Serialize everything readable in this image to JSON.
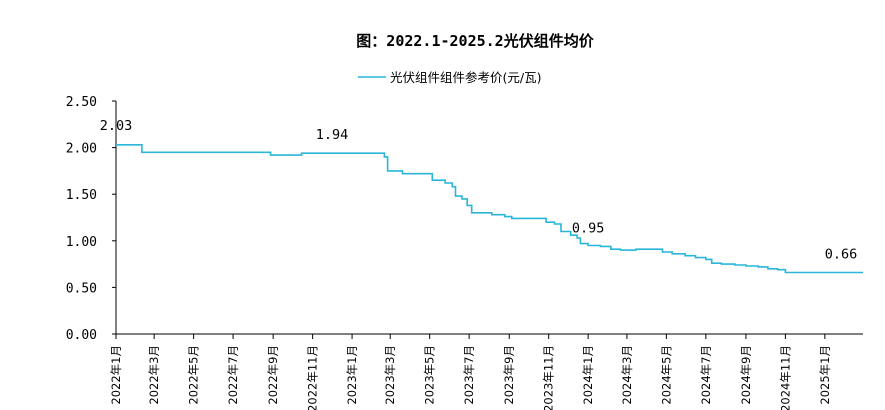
{
  "chart_data": {
    "type": "line",
    "title": "图：2022.1-2025.2光伏组件均价",
    "legend": "光伏组件组件参考价(元/瓦)",
    "legend_position": "top-center",
    "line_color": "#29b6d9",
    "grid": false,
    "ylim": [
      0,
      2.5
    ],
    "y_ticks": [
      "0.00",
      "0.50",
      "1.00",
      "1.50",
      "2.00",
      "2.50"
    ],
    "x_range_months": [
      "2022-01",
      "2025-03"
    ],
    "x_tick_labels": [
      "2022年1月",
      "2022年3月",
      "2022年5月",
      "2022年7月",
      "2022年9月",
      "2022年11月",
      "2023年1月",
      "2023年3月",
      "2023年5月",
      "2023年7月",
      "2023年9月",
      "2023年11月",
      "2024年1月",
      "2024年3月",
      "2024年5月",
      "2024年7月",
      "2024年9月",
      "2024年11月",
      "2025年1月"
    ],
    "series": [
      {
        "name": "光伏组件组件参考价(元/瓦)",
        "points": [
          [
            "2022-01-01",
            2.03
          ],
          [
            "2022-01-15",
            2.03
          ],
          [
            "2022-01-28",
            2.03
          ],
          [
            "2022-02-10",
            1.95
          ],
          [
            "2022-03-01",
            1.95
          ],
          [
            "2022-04-01",
            1.95
          ],
          [
            "2022-05-01",
            1.95
          ],
          [
            "2022-06-01",
            1.95
          ],
          [
            "2022-07-01",
            1.95
          ],
          [
            "2022-08-01",
            1.95
          ],
          [
            "2022-08-20",
            1.95
          ],
          [
            "2022-08-28",
            1.92
          ],
          [
            "2022-09-20",
            1.92
          ],
          [
            "2022-10-05",
            1.92
          ],
          [
            "2022-10-15",
            1.94
          ],
          [
            "2022-11-01",
            1.94
          ],
          [
            "2022-12-01",
            1.94
          ],
          [
            "2023-01-01",
            1.94
          ],
          [
            "2023-02-01",
            1.94
          ],
          [
            "2023-02-15",
            1.94
          ],
          [
            "2023-02-20",
            1.9
          ],
          [
            "2023-02-25",
            1.75
          ],
          [
            "2023-03-10",
            1.75
          ],
          [
            "2023-03-20",
            1.72
          ],
          [
            "2023-04-10",
            1.72
          ],
          [
            "2023-04-20",
            1.72
          ],
          [
            "2023-05-05",
            1.65
          ],
          [
            "2023-05-25",
            1.62
          ],
          [
            "2023-06-05",
            1.58
          ],
          [
            "2023-06-10",
            1.48
          ],
          [
            "2023-06-20",
            1.45
          ],
          [
            "2023-06-28",
            1.38
          ],
          [
            "2023-07-05",
            1.3
          ],
          [
            "2023-07-25",
            1.3
          ],
          [
            "2023-08-05",
            1.28
          ],
          [
            "2023-08-25",
            1.26
          ],
          [
            "2023-09-05",
            1.24
          ],
          [
            "2023-10-01",
            1.24
          ],
          [
            "2023-10-20",
            1.24
          ],
          [
            "2023-10-28",
            1.2
          ],
          [
            "2023-11-10",
            1.18
          ],
          [
            "2023-11-20",
            1.1
          ],
          [
            "2023-12-05",
            1.06
          ],
          [
            "2023-12-15",
            1.03
          ],
          [
            "2023-12-20",
            0.97
          ],
          [
            "2024-01-01",
            0.95
          ],
          [
            "2024-01-20",
            0.94
          ],
          [
            "2024-02-05",
            0.91
          ],
          [
            "2024-02-20",
            0.9
          ],
          [
            "2024-03-01",
            0.9
          ],
          [
            "2024-03-15",
            0.91
          ],
          [
            "2024-04-01",
            0.91
          ],
          [
            "2024-04-10",
            0.91
          ],
          [
            "2024-04-25",
            0.88
          ],
          [
            "2024-05-10",
            0.86
          ],
          [
            "2024-05-30",
            0.84
          ],
          [
            "2024-06-15",
            0.82
          ],
          [
            "2024-07-01",
            0.8
          ],
          [
            "2024-07-10",
            0.76
          ],
          [
            "2024-07-25",
            0.75
          ],
          [
            "2024-08-15",
            0.74
          ],
          [
            "2024-09-01",
            0.73
          ],
          [
            "2024-09-20",
            0.72
          ],
          [
            "2024-10-05",
            0.7
          ],
          [
            "2024-10-20",
            0.69
          ],
          [
            "2024-11-01",
            0.66
          ],
          [
            "2024-12-01",
            0.66
          ],
          [
            "2025-01-01",
            0.66
          ],
          [
            "2025-02-01",
            0.66
          ],
          [
            "2025-03-01",
            0.66
          ]
        ]
      }
    ],
    "annotations": [
      {
        "date": "2022-01-01",
        "value": 2.03,
        "label": "2.03"
      },
      {
        "date": "2022-12-01",
        "value": 1.94,
        "label": "1.94"
      },
      {
        "date": "2024-01-01",
        "value": 0.95,
        "label": "0.95"
      },
      {
        "date": "2025-03-01",
        "value": 0.66,
        "label": "0.66"
      }
    ]
  }
}
